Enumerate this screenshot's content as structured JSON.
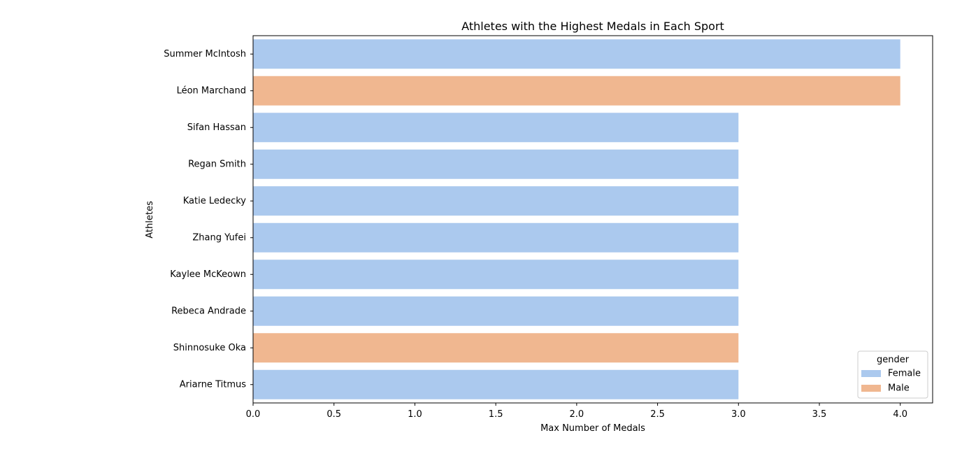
{
  "chart_data": {
    "type": "bar",
    "orientation": "horizontal",
    "title": "Athletes with the Highest Medals in Each Sport",
    "xlabel": "Max Number of Medals",
    "ylabel": "Athletes",
    "xlim": [
      0,
      4.2
    ],
    "xticks": [
      "0.0",
      "0.5",
      "1.0",
      "1.5",
      "2.0",
      "2.5",
      "3.0",
      "3.5",
      "4.0"
    ],
    "categories": [
      "Summer McIntosh",
      "Léon Marchand",
      "Sifan Hassan",
      "Regan Smith",
      "Katie Ledecky",
      "Zhang Yufei",
      "Kaylee McKeown",
      "Rebeca Andrade",
      "Shinnosuke Oka",
      "Ariarne Titmus"
    ],
    "values": [
      4,
      4,
      3,
      3,
      3,
      3,
      3,
      3,
      3,
      3
    ],
    "groups": [
      "Female",
      "Male",
      "Female",
      "Female",
      "Female",
      "Female",
      "Female",
      "Female",
      "Male",
      "Female"
    ],
    "grid": false,
    "legend": {
      "title": "gender",
      "placement": "lower-right",
      "entries": [
        {
          "name": "Female",
          "color": "#abc9ee"
        },
        {
          "name": "Male",
          "color": "#f0b790"
        }
      ]
    }
  }
}
